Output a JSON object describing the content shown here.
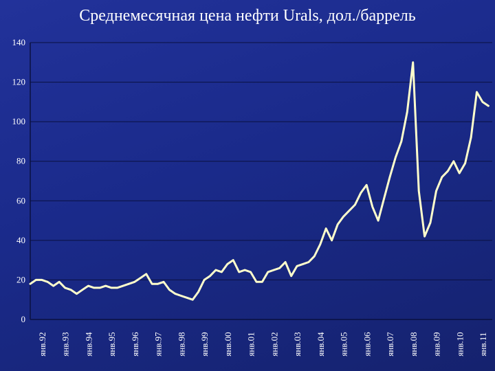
{
  "title": "Среднемесячная цена нефти Urals, дол./баррель",
  "colors": {
    "background": "#1c2a86",
    "line": "#ffffcc",
    "grid": "#0a1040",
    "text": "#ffffff"
  },
  "chart_data": {
    "type": "line",
    "title": "Среднемесячная цена нефти Urals, дол./баррель",
    "xlabel": "",
    "ylabel": "",
    "ylim": [
      0,
      140
    ],
    "yticks": [
      "0",
      "20",
      "40",
      "60",
      "80",
      "100",
      "120",
      "140"
    ],
    "grid": true,
    "legend": "none",
    "xtick_labels": [
      "янв.92",
      "янв.93",
      "янв.94",
      "янв.95",
      "янв.96",
      "янв.97",
      "янв.98",
      "янв.99",
      "янв.00",
      "янв.01",
      "янв.02",
      "янв.03",
      "янв.04",
      "янв.05",
      "янв.06",
      "янв.07",
      "янв.08",
      "янв.09",
      "янв.10",
      "янв.11"
    ],
    "series": [
      {
        "name": "",
        "x": [
          "1992-01",
          "1992-04",
          "1992-07",
          "1992-10",
          "1993-01",
          "1993-04",
          "1993-07",
          "1993-10",
          "1994-01",
          "1994-04",
          "1994-07",
          "1994-10",
          "1995-01",
          "1995-04",
          "1995-07",
          "1995-10",
          "1996-01",
          "1996-04",
          "1996-07",
          "1996-10",
          "1997-01",
          "1997-04",
          "1997-07",
          "1997-10",
          "1998-01",
          "1998-04",
          "1998-07",
          "1998-10",
          "1999-01",
          "1999-04",
          "1999-07",
          "1999-10",
          "2000-01",
          "2000-04",
          "2000-07",
          "2000-10",
          "2001-01",
          "2001-04",
          "2001-07",
          "2001-10",
          "2002-01",
          "2002-04",
          "2002-07",
          "2002-10",
          "2003-01",
          "2003-04",
          "2003-07",
          "2003-10",
          "2004-01",
          "2004-04",
          "2004-07",
          "2004-10",
          "2005-01",
          "2005-04",
          "2005-07",
          "2005-10",
          "2006-01",
          "2006-04",
          "2006-07",
          "2006-10",
          "2007-01",
          "2007-04",
          "2007-07",
          "2007-10",
          "2008-01",
          "2008-04",
          "2008-07",
          "2008-10",
          "2009-01",
          "2009-04",
          "2009-07",
          "2009-10",
          "2010-01",
          "2010-04",
          "2010-07",
          "2010-10",
          "2011-01",
          "2011-04",
          "2011-07",
          "2011-10"
        ],
        "y": [
          18,
          20,
          20,
          19,
          17,
          19,
          16,
          15,
          13,
          15,
          17,
          16,
          16,
          17,
          16,
          16,
          17,
          18,
          19,
          21,
          23,
          18,
          18,
          19,
          15,
          13,
          12,
          11,
          10,
          14,
          20,
          22,
          25,
          24,
          28,
          30,
          24,
          25,
          24,
          19,
          19,
          24,
          25,
          26,
          29,
          22,
          27,
          28,
          29,
          32,
          38,
          46,
          40,
          48,
          52,
          55,
          58,
          64,
          68,
          57,
          50,
          61,
          72,
          82,
          90,
          105,
          130,
          65,
          42,
          49,
          65,
          72,
          75,
          80,
          74,
          79,
          92,
          115,
          110,
          108
        ]
      }
    ]
  }
}
